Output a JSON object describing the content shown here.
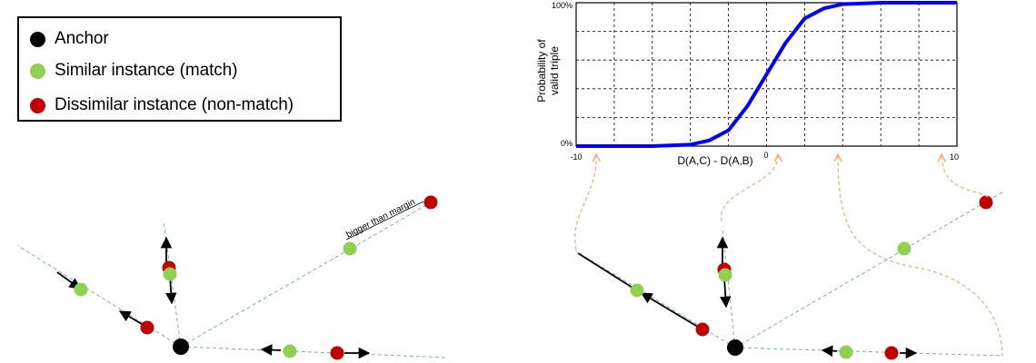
{
  "legend": {
    "items": [
      {
        "key": "anchor",
        "label": "Anchor",
        "color": "#000000"
      },
      {
        "key": "similar",
        "label": "Similar instance (match)",
        "color": "#92d050"
      },
      {
        "key": "dissimilar",
        "label": "Dissimilar instance (non-match)",
        "color": "#c00000"
      }
    ]
  },
  "annotations": {
    "margin_note": "bigger than margin"
  },
  "colors": {
    "curve": "#0000ff",
    "axis_line": "#7ea6d6",
    "connector": "#f4b183",
    "similar": "#92d050",
    "dissimilar": "#c00000",
    "anchor": "#000000"
  },
  "chart_data": {
    "type": "line",
    "title": "",
    "xlabel": "D(A,C) - D(A,B)",
    "ylabel": "Probability of valid triple",
    "ylabel_lines": [
      "Probability of",
      "valid triple"
    ],
    "xlim": [
      -10,
      10
    ],
    "ylim": [
      0,
      100
    ],
    "x_tick_labels": [
      "-10",
      "0",
      "10"
    ],
    "y_tick_labels": [
      "0%",
      "100%"
    ],
    "grid": true,
    "series": [
      {
        "values": [
          {
            "x": -10,
            "y": 0
          },
          {
            "x": -6,
            "y": 0
          },
          {
            "x": -4,
            "y": 1
          },
          {
            "x": -3,
            "y": 4
          },
          {
            "x": -2,
            "y": 11
          },
          {
            "x": -1,
            "y": 28
          },
          {
            "x": 0,
            "y": 50
          },
          {
            "x": 1,
            "y": 72
          },
          {
            "x": 2,
            "y": 89
          },
          {
            "x": 3,
            "y": 96
          },
          {
            "x": 4,
            "y": 99
          },
          {
            "x": 6,
            "y": 100
          },
          {
            "x": 10,
            "y": 100
          }
        ]
      }
    ]
  }
}
